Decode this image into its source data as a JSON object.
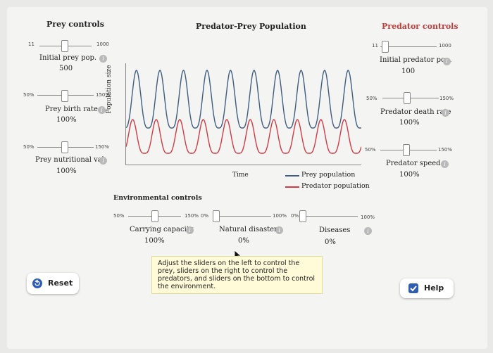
{
  "prey": {
    "title": "Prey controls",
    "initial": {
      "min": "11",
      "max": "1000",
      "label": "Initial prey pop.",
      "value": "500"
    },
    "birth": {
      "min": "50%",
      "max": "150%",
      "label": "Prey birth rate",
      "value": "100%"
    },
    "nutrition": {
      "min": "50%",
      "max": "150%",
      "label": "Prey nutritional val.",
      "value": "100%"
    }
  },
  "predator": {
    "title": "Predator controls",
    "initial": {
      "min": "11",
      "max": "1000",
      "label": "Initial predator pop.",
      "value": "100"
    },
    "death": {
      "min": "50%",
      "max": "150%",
      "label": "Predator death rate",
      "value": "100%"
    },
    "speed": {
      "min": "50%",
      "max": "150%",
      "label": "Predator speed",
      "value": "100%"
    }
  },
  "chart": {
    "title": "Predator-Prey Population",
    "ylabel": "Population size",
    "xlabel": "Time",
    "legend_prey": "Prey population",
    "legend_predator": "Predator population"
  },
  "chart_data": {
    "type": "line",
    "title": "Predator-Prey Population",
    "xlabel": "Time",
    "ylabel": "Population size",
    "series": [
      {
        "name": "Prey population",
        "color": "#3e5d80",
        "cycles": 10
      },
      {
        "name": "Predator population",
        "color": "#d23a45",
        "cycles": 10
      }
    ]
  },
  "env": {
    "title": "Environmental controls",
    "carrying": {
      "min": "50%",
      "max": "150%",
      "label": "Carrying capacity",
      "value": "100%"
    },
    "disasters": {
      "min": "0%",
      "max": "100%",
      "label": "Natural disasters",
      "value": "0%"
    },
    "diseases": {
      "min": "0%",
      "max": "100%",
      "label": "Diseases",
      "value": "0%"
    }
  },
  "tooltip": "Adjust the sliders on the left to control the prey, sliders on the right to control the predators, and sliders on the bottom to control the environment.",
  "buttons": {
    "reset": "Reset",
    "help": "Help"
  },
  "colors": {
    "prey": "#3e5d80",
    "predator": "#d23a45",
    "predator_title": "#c53b3b",
    "help_check": "#2f5db3",
    "reset_icon": "#2f5db3"
  }
}
